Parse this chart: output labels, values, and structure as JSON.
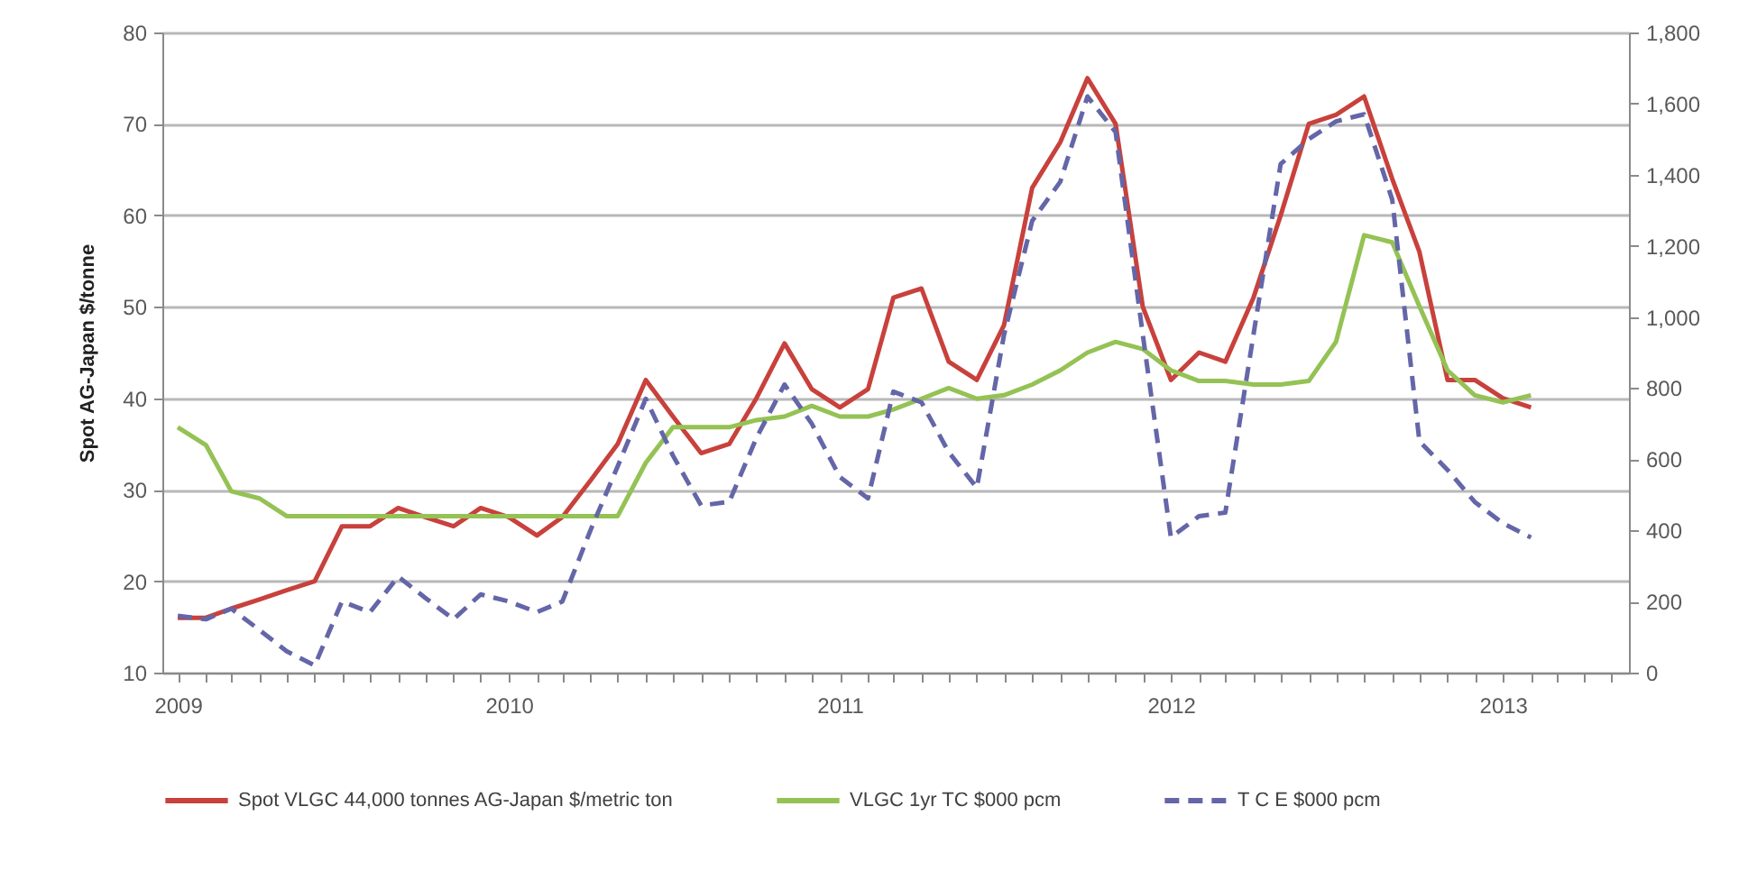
{
  "chart_data": {
    "type": "line",
    "ylabel": "Spot AG-Japan $/tonne",
    "x": [
      "2009-01",
      "2009-02",
      "2009-03",
      "2009-04",
      "2009-05",
      "2009-06",
      "2009-07",
      "2009-08",
      "2009-09",
      "2009-10",
      "2009-11",
      "2009-12",
      "2010-01",
      "2010-02",
      "2010-03",
      "2010-04",
      "2010-05",
      "2010-06",
      "2010-07",
      "2010-08",
      "2010-09",
      "2010-10",
      "2010-11",
      "2010-12",
      "2011-01",
      "2011-02",
      "2011-03",
      "2011-04",
      "2011-05",
      "2011-06",
      "2011-07",
      "2011-08",
      "2011-09",
      "2011-10",
      "2011-11",
      "2011-12",
      "2012-01",
      "2012-02",
      "2012-03",
      "2012-04",
      "2012-05",
      "2012-06",
      "2012-07",
      "2012-08",
      "2012-09",
      "2012-10",
      "2012-11",
      "2012-12",
      "2013-01",
      "2013-02"
    ],
    "xlim": [
      "2008-12-15",
      "2013-05-20"
    ],
    "xticks": [
      "2009",
      {
        "value": "2009-02",
        "label": null
      },
      {
        "value": "2009-03",
        "label": null
      },
      {
        "value": "2009-04",
        "label": null
      },
      {
        "value": "2009-05",
        "label": null
      },
      {
        "value": "2009-06",
        "label": null
      },
      {
        "value": "2009-07",
        "label": null
      },
      {
        "value": "2009-08",
        "label": null
      },
      {
        "value": "2009-09",
        "label": null
      },
      {
        "value": "2009-10",
        "label": null
      },
      {
        "value": "2009-11",
        "label": null
      },
      {
        "value": "2009-12",
        "label": null
      },
      "2010",
      {
        "value": "2010-02",
        "label": null
      },
      {
        "value": "2010-03",
        "label": null
      },
      {
        "value": "2010-04",
        "label": null
      },
      {
        "value": "2010-05",
        "label": null
      },
      {
        "value": "2010-06",
        "label": null
      },
      {
        "value": "2010-07",
        "label": null
      },
      {
        "value": "2010-08",
        "label": null
      },
      {
        "value": "2010-09",
        "label": null
      },
      {
        "value": "2010-10",
        "label": null
      },
      {
        "value": "2010-11",
        "label": null
      },
      {
        "value": "2010-12",
        "label": null
      },
      "2011",
      {
        "value": "2011-02",
        "label": null
      },
      {
        "value": "2011-03",
        "label": null
      },
      {
        "value": "2011-04",
        "label": null
      },
      {
        "value": "2011-05",
        "label": null
      },
      {
        "value": "2011-06",
        "label": null
      },
      {
        "value": "2011-07",
        "label": null
      },
      {
        "value": "2011-08",
        "label": null
      },
      {
        "value": "2011-09",
        "label": null
      },
      {
        "value": "2011-10",
        "label": null
      },
      {
        "value": "2011-11",
        "label": null
      },
      {
        "value": "2011-12",
        "label": null
      },
      "2012",
      {
        "value": "2012-02",
        "label": null
      },
      {
        "value": "2012-03",
        "label": null
      },
      {
        "value": "2012-04",
        "label": null
      },
      {
        "value": "2012-05",
        "label": null
      },
      {
        "value": "2012-06",
        "label": null
      },
      {
        "value": "2012-07",
        "label": null
      },
      {
        "value": "2012-08",
        "label": null
      },
      {
        "value": "2012-09",
        "label": null
      },
      {
        "value": "2012-10",
        "label": null
      },
      {
        "value": "2012-11",
        "label": null
      },
      {
        "value": "2012-12",
        "label": null
      },
      "2013",
      {
        "value": "2013-02",
        "label": null
      },
      {
        "value": "2013-03",
        "label": null
      },
      {
        "value": "2013-04",
        "label": null
      },
      {
        "value": "2013-05",
        "label": null
      }
    ],
    "ylim": [
      10,
      80
    ],
    "yticks": [
      10,
      20,
      30,
      40,
      50,
      60,
      70,
      80
    ],
    "y2lim": [
      0,
      1800
    ],
    "y2ticks": [
      0,
      200,
      400,
      600,
      800,
      {
        "value": 1000,
        "label": "1,000"
      },
      {
        "value": 1200,
        "label": "1,200"
      },
      {
        "value": 1400,
        "label": "1,400"
      },
      {
        "value": 1600,
        "label": "1,600"
      },
      {
        "value": 1800,
        "label": "1,800"
      }
    ],
    "grid": "y",
    "legend": "bottom",
    "series": [
      {
        "name": "Spot VLGC 44,000 tonnes AG-Japan $/metric ton",
        "color": "#c8413c",
        "line_style": "solid",
        "values": [
          16,
          16,
          17,
          18,
          19,
          20,
          26,
          26,
          28,
          27,
          26,
          28,
          27,
          25,
          27,
          31,
          35,
          42,
          38,
          34,
          35,
          40,
          46,
          41,
          39,
          41,
          51,
          52,
          44,
          42,
          48,
          63,
          68,
          75,
          70,
          50,
          42,
          45,
          44,
          51,
          60,
          70,
          71,
          73,
          64,
          56,
          42,
          42,
          40,
          39
        ]
      },
      {
        "name": "VLGC 1yr TC $000 pcm",
        "color": "#94c254",
        "line_style": "solid",
        "axis": "y2",
        "values": [
          690,
          640,
          510,
          490,
          440,
          440,
          440,
          440,
          440,
          440,
          440,
          440,
          440,
          440,
          440,
          440,
          440,
          590,
          690,
          690,
          690,
          710,
          720,
          750,
          720,
          720,
          740,
          770,
          800,
          770,
          780,
          810,
          850,
          900,
          930,
          910,
          850,
          820,
          820,
          810,
          810,
          820,
          930,
          1230,
          1210,
          1030,
          850,
          780,
          760,
          780
        ]
      },
      {
        "name": "T C E $000 pcm",
        "color": "#6466a8",
        "line_style": "dashed",
        "axis": "y2",
        "values": [
          160,
          150,
          180,
          120,
          60,
          20,
          200,
          170,
          270,
          210,
          150,
          220,
          200,
          170,
          200,
          400,
          580,
          770,
          610,
          470,
          480,
          660,
          810,
          700,
          550,
          490,
          790,
          760,
          620,
          520,
          950,
          1270,
          1380,
          1620,
          1520,
          950,
          380,
          440,
          450,
          950,
          1430,
          1500,
          1550,
          1570,
          1330,
          650,
          570,
          480,
          420,
          380
        ]
      }
    ]
  }
}
